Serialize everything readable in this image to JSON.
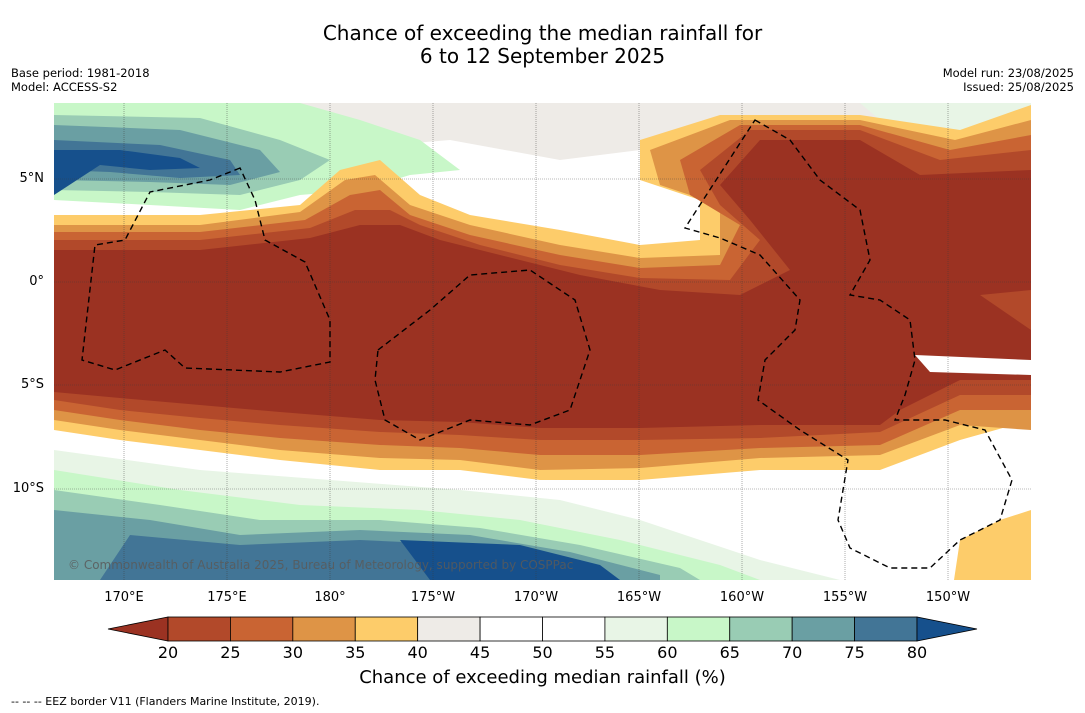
{
  "title": {
    "line1": "Chance of exceeding the median rainfall for",
    "line2": "6 to 12 September 2025"
  },
  "meta_left": {
    "base_period": "Base period: 1981-2018",
    "model": "Model: ACCESS-S2"
  },
  "meta_right": {
    "model_run": "Model run: 23/08/2025",
    "issued": "Issued: 25/08/2025"
  },
  "lat_labels": [
    "5°N",
    "0°",
    "5°S",
    "10°S"
  ],
  "lon_labels": [
    "170°E",
    "175°E",
    "180°",
    "175°W",
    "170°W",
    "165°W",
    "160°W",
    "155°W",
    "150°W"
  ],
  "copyright": "© Commonwealth of Australia 2025, Bureau of Meteorology, supported by COSPPac",
  "colorbar": {
    "ticks": [
      "20",
      "25",
      "30",
      "35",
      "40",
      "45",
      "50",
      "55",
      "60",
      "65",
      "70",
      "75",
      "80"
    ],
    "colors": [
      "#9b3222",
      "#b2492a",
      "#c96433",
      "#de9446",
      "#fdcc6a",
      "#eeebe7",
      "#ffffff",
      "#ffffff",
      "#e8f5e6",
      "#c8f7c8",
      "#99ccb4",
      "#6a9fa3",
      "#427596",
      "#16508c"
    ],
    "title": "Chance of exceeding median rainfall (%)"
  },
  "footer": "--  --  -- EEZ border V11 (Flanders Marine Institute, 2019)."
}
